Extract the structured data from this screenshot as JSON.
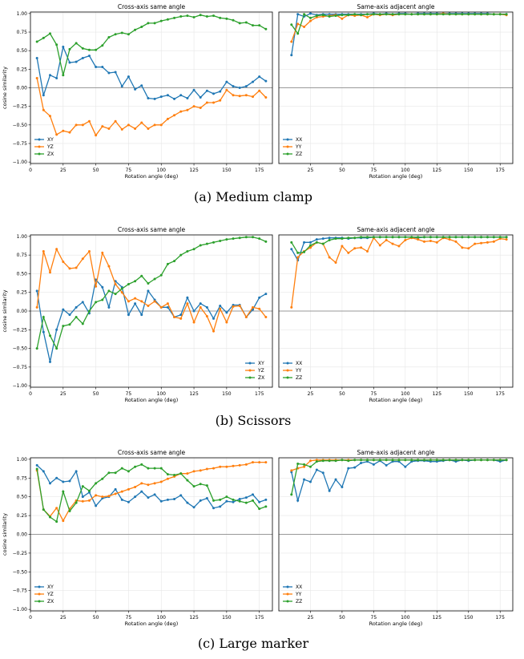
{
  "figures": [
    {
      "caption": "(a) Medium clamp",
      "left_title": "Cross-axis same angle",
      "right_title": "Same-axis adjacent angle"
    },
    {
      "caption": "(b) Scissors",
      "left_title": "Cross-axis same angle",
      "right_title": "Same-axis adjacent angle"
    },
    {
      "caption": "(c) Large marker",
      "left_title": "Cross-axis same angle",
      "right_title": "Same-axis adjacent angle"
    }
  ],
  "colors": {
    "blue": "#1f77b4",
    "orange": "#ff7f0e",
    "green": "#2ca02c",
    "zero_line": "#999999"
  },
  "chart_data": [
    {
      "type": "line",
      "title": "Cross-axis same angle",
      "xlabel": "Rotation angle (deg)",
      "ylabel": "cosine similarity",
      "xlim": [
        0,
        185
      ],
      "ylim": [
        -1.02,
        1.02
      ],
      "grid": true,
      "legend": "bottom-left",
      "xticks": [
        0,
        25,
        50,
        75,
        100,
        125,
        150,
        175
      ],
      "yticks": [
        -1.0,
        -0.75,
        -0.5,
        -0.25,
        0.0,
        0.25,
        0.5,
        0.75,
        1.0
      ],
      "x": [
        5,
        10,
        15,
        20,
        25,
        30,
        35,
        40,
        45,
        50,
        55,
        60,
        65,
        70,
        75,
        80,
        85,
        90,
        95,
        100,
        105,
        110,
        115,
        120,
        125,
        130,
        135,
        140,
        145,
        150,
        155,
        160,
        165,
        170,
        175,
        180
      ],
      "series": [
        {
          "name": "XY",
          "color": "#1f77b4",
          "values": [
            0.4,
            -0.1,
            0.17,
            0.13,
            0.55,
            0.34,
            0.35,
            0.4,
            0.43,
            0.28,
            0.28,
            0.2,
            0.21,
            0.02,
            0.15,
            -0.02,
            0.03,
            -0.14,
            -0.15,
            -0.12,
            -0.1,
            -0.15,
            -0.1,
            -0.14,
            -0.03,
            -0.13,
            -0.04,
            -0.08,
            -0.05,
            0.08,
            0.02,
            0.0,
            0.02,
            0.08,
            0.15,
            0.09
          ]
        },
        {
          "name": "YZ",
          "color": "#ff7f0e",
          "values": [
            0.13,
            -0.3,
            -0.38,
            -0.63,
            -0.58,
            -0.6,
            -0.5,
            -0.5,
            -0.45,
            -0.64,
            -0.52,
            -0.55,
            -0.45,
            -0.56,
            -0.5,
            -0.55,
            -0.47,
            -0.55,
            -0.5,
            -0.5,
            -0.42,
            -0.37,
            -0.32,
            -0.3,
            -0.25,
            -0.27,
            -0.2,
            -0.2,
            -0.17,
            -0.03,
            -0.1,
            -0.11,
            -0.1,
            -0.12,
            -0.04,
            -0.13
          ]
        },
        {
          "name": "ZX",
          "color": "#2ca02c",
          "values": [
            0.62,
            0.67,
            0.73,
            0.58,
            0.17,
            0.52,
            0.6,
            0.53,
            0.51,
            0.51,
            0.57,
            0.68,
            0.72,
            0.74,
            0.72,
            0.78,
            0.82,
            0.87,
            0.87,
            0.9,
            0.92,
            0.94,
            0.96,
            0.97,
            0.95,
            0.98,
            0.96,
            0.97,
            0.94,
            0.93,
            0.91,
            0.87,
            0.88,
            0.84,
            0.84,
            0.79
          ]
        }
      ]
    },
    {
      "type": "line",
      "title": "Same-axis adjacent angle",
      "xlabel": "Rotation angle (deg)",
      "xlim": [
        0,
        185
      ],
      "ylim": [
        -1.02,
        1.02
      ],
      "grid": true,
      "legend": "bottom-left",
      "xticks": [
        25,
        50,
        75,
        100,
        125,
        150,
        175
      ],
      "x": [
        10,
        15,
        20,
        25,
        30,
        35,
        40,
        45,
        50,
        55,
        60,
        65,
        70,
        75,
        80,
        85,
        90,
        95,
        100,
        105,
        110,
        115,
        120,
        125,
        130,
        135,
        140,
        145,
        150,
        155,
        160,
        165,
        170,
        175,
        180
      ],
      "series": [
        {
          "name": "XX",
          "color": "#1f77b4",
          "values": [
            0.44,
            0.99,
            0.96,
            1.0,
            0.98,
            0.99,
            0.99,
            0.99,
            0.99,
            0.99,
            0.99,
            0.99,
            0.99,
            1.0,
            0.99,
            1.0,
            0.99,
            1.0,
            1.0,
            0.99,
            1.0,
            1.0,
            1.0,
            1.0,
            1.0,
            1.0,
            1.0,
            1.0,
            1.0,
            1.0,
            1.0,
            1.0,
            0.99,
            0.99,
            0.99
          ]
        },
        {
          "name": "YY",
          "color": "#ff7f0e",
          "values": [
            0.62,
            0.86,
            0.82,
            0.9,
            0.95,
            0.96,
            0.97,
            0.98,
            0.93,
            0.98,
            0.97,
            0.98,
            0.95,
            0.99,
            0.98,
            0.99,
            0.98,
            0.99,
            0.99,
            0.99,
            0.99,
            0.99,
            0.99,
            0.99,
            1.0,
            0.99,
            0.99,
            0.99,
            0.99,
            0.99,
            0.99,
            0.99,
            0.99,
            0.99,
            0.98
          ]
        },
        {
          "name": "ZZ",
          "color": "#2ca02c",
          "values": [
            0.85,
            0.73,
            0.99,
            0.94,
            0.97,
            0.98,
            0.96,
            0.97,
            0.98,
            0.98,
            0.99,
            0.98,
            0.99,
            0.99,
            0.99,
            0.99,
            0.99,
            0.99,
            0.99,
            0.99,
            0.99,
            0.99,
            0.99,
            0.99,
            0.99,
            0.99,
            0.99,
            0.99,
            0.99,
            0.99,
            0.99,
            0.99,
            0.99,
            0.99,
            0.99
          ]
        }
      ]
    },
    {
      "type": "line",
      "title": "Cross-axis same angle",
      "xlabel": "Rotation angle (deg)",
      "ylabel": "cosine similarity",
      "xlim": [
        0,
        185
      ],
      "ylim": [
        -1.02,
        1.02
      ],
      "grid": true,
      "legend": "bottom-right",
      "xticks": [
        0,
        25,
        50,
        75,
        100,
        125,
        150,
        175
      ],
      "yticks": [
        -1.0,
        -0.75,
        -0.5,
        -0.25,
        0.0,
        0.25,
        0.5,
        0.75,
        1.0
      ],
      "x": [
        5,
        10,
        15,
        20,
        25,
        30,
        35,
        40,
        45,
        50,
        55,
        60,
        65,
        70,
        75,
        80,
        85,
        90,
        95,
        100,
        105,
        110,
        115,
        120,
        125,
        130,
        135,
        140,
        145,
        150,
        155,
        160,
        165,
        170,
        175,
        180
      ],
      "series": [
        {
          "name": "XY",
          "color": "#1f77b4",
          "values": [
            0.27,
            -0.28,
            -0.68,
            -0.25,
            0.02,
            -0.05,
            0.05,
            0.12,
            -0.03,
            0.42,
            0.32,
            0.05,
            0.4,
            0.32,
            -0.05,
            0.1,
            -0.05,
            0.27,
            0.15,
            0.05,
            0.05,
            -0.08,
            -0.05,
            0.18,
            0.0,
            0.1,
            0.05,
            -0.1,
            0.07,
            -0.02,
            0.08,
            0.08,
            -0.08,
            0.02,
            0.18,
            0.23
          ]
        },
        {
          "name": "YZ",
          "color": "#ff7f0e",
          "values": [
            0.05,
            0.8,
            0.52,
            0.83,
            0.66,
            0.57,
            0.58,
            0.7,
            0.8,
            0.33,
            0.78,
            0.6,
            0.36,
            0.25,
            0.13,
            0.17,
            0.13,
            0.07,
            0.13,
            0.05,
            0.1,
            -0.08,
            -0.1,
            0.1,
            -0.15,
            0.05,
            -0.07,
            -0.27,
            0.03,
            -0.15,
            0.06,
            0.07,
            -0.08,
            0.05,
            0.03,
            -0.08
          ]
        },
        {
          "name": "ZX",
          "color": "#2ca02c",
          "values": [
            -0.5,
            -0.08,
            -0.33,
            -0.5,
            -0.2,
            -0.18,
            -0.08,
            -0.17,
            0.0,
            0.12,
            0.15,
            0.27,
            0.23,
            0.3,
            0.36,
            0.4,
            0.47,
            0.37,
            0.43,
            0.48,
            0.63,
            0.67,
            0.75,
            0.8,
            0.83,
            0.88,
            0.9,
            0.92,
            0.94,
            0.96,
            0.97,
            0.98,
            0.99,
            0.99,
            0.97,
            0.93
          ]
        }
      ]
    },
    {
      "type": "line",
      "title": "Same-axis adjacent angle",
      "xlabel": "Rotation angle (deg)",
      "xlim": [
        0,
        185
      ],
      "ylim": [
        -1.02,
        1.02
      ],
      "grid": true,
      "legend": "bottom-left",
      "xticks": [
        25,
        50,
        75,
        100,
        125,
        150,
        175
      ],
      "x": [
        10,
        15,
        20,
        25,
        30,
        35,
        40,
        45,
        50,
        55,
        60,
        65,
        70,
        75,
        80,
        85,
        90,
        95,
        100,
        105,
        110,
        115,
        120,
        125,
        130,
        135,
        140,
        145,
        150,
        155,
        160,
        165,
        170,
        175,
        180
      ],
      "series": [
        {
          "name": "XX",
          "color": "#1f77b4",
          "values": [
            0.83,
            0.68,
            0.92,
            0.92,
            0.96,
            0.97,
            0.98,
            0.98,
            0.98,
            0.97,
            0.98,
            0.98,
            0.98,
            0.99,
            0.99,
            0.99,
            0.99,
            0.99,
            0.99,
            0.99,
            0.98,
            0.99,
            0.99,
            0.99,
            0.99,
            0.99,
            0.99,
            0.99,
            0.99,
            0.99,
            0.99,
            0.99,
            0.99,
            0.99,
            0.99
          ]
        },
        {
          "name": "YY",
          "color": "#ff7f0e",
          "values": [
            0.05,
            0.72,
            0.8,
            0.85,
            0.92,
            0.9,
            0.72,
            0.65,
            0.87,
            0.78,
            0.84,
            0.85,
            0.8,
            0.98,
            0.88,
            0.95,
            0.9,
            0.87,
            0.95,
            0.98,
            0.96,
            0.93,
            0.94,
            0.92,
            0.98,
            0.96,
            0.93,
            0.85,
            0.84,
            0.9,
            0.91,
            0.92,
            0.93,
            0.97,
            0.96
          ]
        },
        {
          "name": "ZZ",
          "color": "#2ca02c",
          "values": [
            0.92,
            0.78,
            0.79,
            0.88,
            0.92,
            0.9,
            0.95,
            0.97,
            0.97,
            0.98,
            0.98,
            0.99,
            0.99,
            0.99,
            0.99,
            0.99,
            0.99,
            0.99,
            0.99,
            0.99,
            0.99,
            0.99,
            0.99,
            0.99,
            0.99,
            0.99,
            0.99,
            0.99,
            0.99,
            0.99,
            0.99,
            0.99,
            0.99,
            0.99,
            0.99
          ]
        }
      ]
    },
    {
      "type": "line",
      "title": "Cross-axis same angle",
      "xlabel": "Rotation angle (deg)",
      "ylabel": "cosine similarity",
      "xlim": [
        0,
        185
      ],
      "ylim": [
        -1.02,
        1.02
      ],
      "grid": true,
      "legend": "bottom-left",
      "xticks": [
        0,
        25,
        50,
        75,
        100,
        125,
        150,
        175
      ],
      "yticks": [
        -1.0,
        -0.75,
        -0.5,
        -0.25,
        0.0,
        0.25,
        0.5,
        0.75,
        1.0
      ],
      "x": [
        5,
        10,
        15,
        20,
        25,
        30,
        35,
        40,
        45,
        50,
        55,
        60,
        65,
        70,
        75,
        80,
        85,
        90,
        95,
        100,
        105,
        110,
        115,
        120,
        125,
        130,
        135,
        140,
        145,
        150,
        155,
        160,
        165,
        170,
        175,
        180
      ],
      "series": [
        {
          "name": "XY",
          "color": "#1f77b4",
          "values": [
            0.92,
            0.84,
            0.68,
            0.75,
            0.7,
            0.71,
            0.84,
            0.5,
            0.56,
            0.38,
            0.48,
            0.5,
            0.6,
            0.46,
            0.43,
            0.5,
            0.57,
            0.49,
            0.53,
            0.44,
            0.46,
            0.47,
            0.52,
            0.42,
            0.36,
            0.45,
            0.48,
            0.35,
            0.37,
            0.44,
            0.43,
            0.47,
            0.49,
            0.53,
            0.43,
            0.46
          ]
        },
        {
          "name": "YZ",
          "color": "#ff7f0e",
          "values": [
            0.85,
            0.33,
            0.24,
            0.35,
            0.18,
            0.34,
            0.45,
            0.44,
            0.45,
            0.52,
            0.5,
            0.51,
            0.54,
            0.57,
            0.6,
            0.63,
            0.68,
            0.66,
            0.68,
            0.7,
            0.74,
            0.77,
            0.81,
            0.81,
            0.84,
            0.85,
            0.87,
            0.88,
            0.9,
            0.9,
            0.91,
            0.92,
            0.93,
            0.96,
            0.96,
            0.96
          ]
        },
        {
          "name": "ZX",
          "color": "#2ca02c",
          "values": [
            0.87,
            0.33,
            0.23,
            0.17,
            0.57,
            0.31,
            0.42,
            0.64,
            0.58,
            0.68,
            0.74,
            0.82,
            0.82,
            0.88,
            0.84,
            0.9,
            0.93,
            0.88,
            0.88,
            0.88,
            0.8,
            0.79,
            0.81,
            0.72,
            0.64,
            0.67,
            0.65,
            0.45,
            0.46,
            0.5,
            0.46,
            0.44,
            0.42,
            0.45,
            0.34,
            0.37
          ]
        }
      ]
    },
    {
      "type": "line",
      "title": "Same-axis adjacent angle",
      "xlabel": "Rotation angle (deg)",
      "xlim": [
        0,
        185
      ],
      "ylim": [
        -1.02,
        1.02
      ],
      "grid": true,
      "legend": "bottom-left",
      "xticks": [
        25,
        50,
        75,
        100,
        125,
        150,
        175
      ],
      "x": [
        10,
        15,
        20,
        25,
        30,
        35,
        40,
        45,
        50,
        55,
        60,
        65,
        70,
        75,
        80,
        85,
        90,
        95,
        100,
        105,
        110,
        115,
        120,
        125,
        130,
        135,
        140,
        145,
        150,
        155,
        160,
        165,
        170,
        175,
        180
      ],
      "series": [
        {
          "name": "XX",
          "color": "#1f77b4",
          "values": [
            0.83,
            0.45,
            0.73,
            0.7,
            0.86,
            0.82,
            0.58,
            0.73,
            0.63,
            0.88,
            0.89,
            0.95,
            0.97,
            0.93,
            0.98,
            0.92,
            0.97,
            0.97,
            0.9,
            0.97,
            0.98,
            0.98,
            0.97,
            0.97,
            0.98,
            0.99,
            0.97,
            0.99,
            0.98,
            0.99,
            0.99,
            0.99,
            0.99,
            0.97,
            0.99
          ]
        },
        {
          "name": "YY",
          "color": "#ff7f0e",
          "values": [
            0.85,
            0.88,
            0.9,
            0.98,
            0.99,
            0.99,
            0.99,
            0.99,
            0.99,
            0.99,
            0.99,
            0.99,
            0.99,
            0.99,
            0.99,
            0.99,
            0.99,
            0.99,
            0.99,
            0.99,
            0.99,
            0.99,
            0.99,
            0.99,
            0.99,
            0.99,
            0.99,
            0.99,
            0.99,
            0.99,
            0.99,
            0.99,
            0.99,
            0.99,
            0.99
          ]
        },
        {
          "name": "ZZ",
          "color": "#2ca02c",
          "values": [
            0.53,
            0.94,
            0.93,
            0.9,
            0.97,
            0.98,
            0.98,
            0.98,
            0.99,
            0.98,
            0.99,
            0.99,
            0.99,
            0.99,
            0.99,
            0.99,
            0.99,
            0.99,
            0.99,
            0.99,
            0.99,
            0.99,
            0.99,
            0.99,
            0.99,
            0.99,
            0.99,
            0.99,
            0.99,
            0.99,
            0.99,
            0.99,
            0.99,
            0.99,
            0.99
          ]
        }
      ]
    }
  ]
}
